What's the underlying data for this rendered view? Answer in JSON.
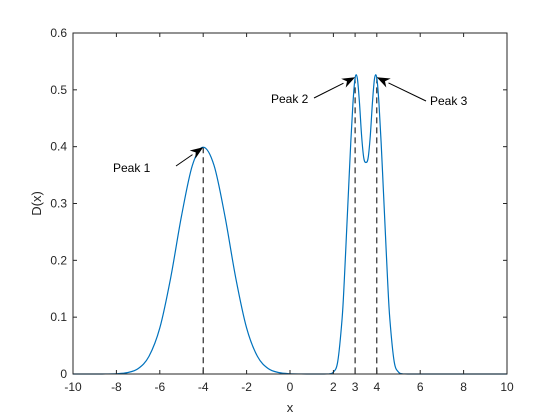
{
  "chart_data": {
    "type": "line",
    "title": "",
    "xlabel": "x",
    "ylabel": "D(x)",
    "xlim": [
      -10,
      10
    ],
    "ylim": [
      0,
      0.6
    ],
    "xticks": [
      -10,
      -8,
      -6,
      -4,
      -2,
      0,
      2,
      3,
      4,
      6,
      8,
      10
    ],
    "xtick_labels": [
      "-10",
      "-8",
      "-6",
      "-4",
      "-2",
      "0",
      "2",
      "3",
      "4",
      "6",
      "8",
      "10"
    ],
    "yticks": [
      0,
      0.1,
      0.2,
      0.3,
      0.4,
      0.5,
      0.6
    ],
    "ytick_labels": [
      "0",
      "0.1",
      "0.2",
      "0.3",
      "0.4",
      "0.5",
      "0.6"
    ],
    "grid": false,
    "series": [
      {
        "color": "#0072BD",
        "x": [
          -10,
          -9,
          -8.5,
          -8,
          -7.5,
          -7,
          -6.5,
          -6,
          -5.5,
          -5,
          -4.5,
          -4,
          -3.5,
          -3,
          -2.5,
          -2,
          -1.5,
          -1,
          -0.5,
          0,
          0.5,
          1,
          1.5,
          1.8,
          2.0,
          2.2,
          2.4,
          2.5,
          2.6,
          2.7,
          2.8,
          2.9,
          3.0,
          3.1,
          3.2,
          3.3,
          3.4,
          3.5,
          3.6,
          3.7,
          3.8,
          3.9,
          4.0,
          4.1,
          4.2,
          4.3,
          4.4,
          4.5,
          4.6,
          4.8,
          5.0,
          5.2,
          5.5,
          6,
          7,
          8,
          9,
          10
        ],
        "y": [
          0,
          0,
          0.0001,
          0.0005,
          0.0024,
          0.0094,
          0.031,
          0.081,
          0.169,
          0.278,
          0.367,
          0.399,
          0.367,
          0.278,
          0.169,
          0.081,
          0.031,
          0.0094,
          0.0024,
          0.0005,
          0.0001,
          0,
          0,
          0.0003,
          0.0033,
          0.022,
          0.097,
          0.163,
          0.244,
          0.326,
          0.407,
          0.476,
          0.521,
          0.521,
          0.478,
          0.419,
          0.38,
          0.372,
          0.38,
          0.419,
          0.478,
          0.521,
          0.521,
          0.476,
          0.407,
          0.326,
          0.244,
          0.163,
          0.097,
          0.022,
          0.0033,
          0.0003,
          0,
          0,
          0,
          0,
          0,
          0
        ]
      }
    ],
    "peaks": [
      {
        "x": -4,
        "y": 0.399,
        "label": "Peak 1"
      },
      {
        "x": 3,
        "y": 0.522,
        "label": "Peak 2"
      },
      {
        "x": 4,
        "y": 0.522,
        "label": "Peak 3"
      }
    ]
  }
}
